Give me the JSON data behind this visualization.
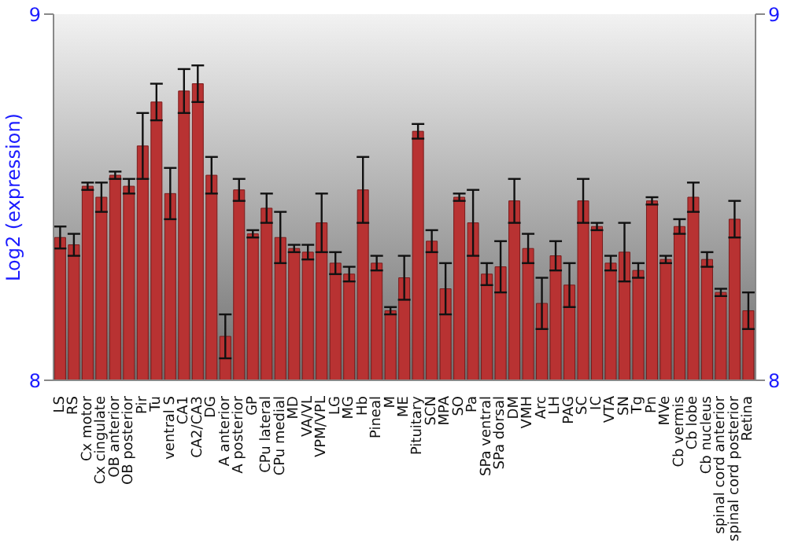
{
  "chart_data": {
    "type": "bar",
    "ylabel": "Log2 (expression)",
    "categories": [
      "LS",
      "RS",
      "Cx motor",
      "Cx cingulate",
      "OB anterior",
      "OB posterior",
      "Pir",
      "Tu",
      "ventral S",
      "CA1",
      "CA2/CA3",
      "DG",
      "A anterior",
      "A posterior",
      "GP",
      "CPu lateral",
      "CPu medial",
      "MD",
      "VA/VL",
      "VPM/VPL",
      "LG",
      "MG",
      "Hb",
      "Pineal",
      "M",
      "ME",
      "Pituitary",
      "SCN",
      "MPA",
      "SO",
      "Pa",
      "SPa ventral",
      "SPa dorsal",
      "DM",
      "VMH",
      "Arc",
      "LH",
      "PAG",
      "SC",
      "IC",
      "VTA",
      "SN",
      "Tg",
      "Pn",
      "MVe",
      "Cb vermis",
      "Cb lobe",
      "Cb nucleus",
      "spinal cord anterior",
      "spinal cord posterior",
      "Retina"
    ],
    "values": [
      8.39,
      8.37,
      8.53,
      8.5,
      8.56,
      8.53,
      8.64,
      8.76,
      8.51,
      8.79,
      8.81,
      8.56,
      8.12,
      8.52,
      8.4,
      8.47,
      8.39,
      8.36,
      8.35,
      8.43,
      8.32,
      8.29,
      8.52,
      8.32,
      8.19,
      8.28,
      8.68,
      8.38,
      8.25,
      8.5,
      8.43,
      8.29,
      8.31,
      8.49,
      8.36,
      8.21,
      8.34,
      8.26,
      8.49,
      8.42,
      8.32,
      8.35,
      8.3,
      8.49,
      8.33,
      8.42,
      8.5,
      8.33,
      8.24,
      8.44,
      8.19
    ],
    "errors": [
      0.03,
      0.03,
      0.01,
      0.04,
      0.01,
      0.02,
      0.09,
      0.05,
      0.07,
      0.06,
      0.05,
      0.05,
      0.06,
      0.03,
      0.01,
      0.04,
      0.07,
      0.01,
      0.02,
      0.08,
      0.03,
      0.02,
      0.09,
      0.02,
      0.01,
      0.06,
      0.02,
      0.03,
      0.07,
      0.01,
      0.09,
      0.03,
      0.07,
      0.06,
      0.04,
      0.07,
      0.04,
      0.06,
      0.06,
      0.01,
      0.02,
      0.08,
      0.02,
      0.01,
      0.01,
      0.02,
      0.04,
      0.02,
      0.01,
      0.05,
      0.05
    ],
    "color": "#b83232",
    "ylim": [
      8,
      9
    ],
    "yticks": [
      8,
      9
    ],
    "y2lim": [
      8,
      9
    ],
    "y2ticks": [
      8,
      9
    ]
  }
}
